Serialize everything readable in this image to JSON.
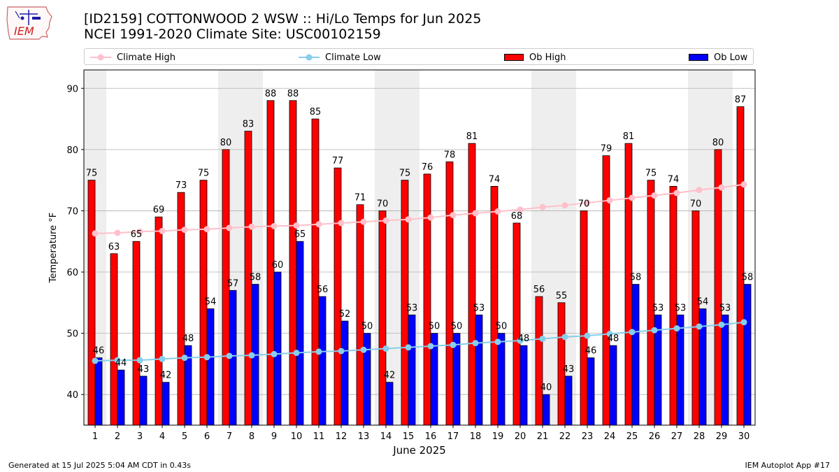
{
  "logo": {
    "text": "IEM"
  },
  "header": {
    "title_line1": "[ID2159] COTTONWOOD 2 WSW :: Hi/Lo Temps for Jun 2025",
    "title_line2": "NCEI 1991-2020 Climate Site: USC00102159"
  },
  "legend": {
    "climate_high": "Climate High",
    "climate_low": "Climate Low",
    "ob_high": "Ob High",
    "ob_low": "Ob Low"
  },
  "footer": {
    "left": "Generated at 15 Jul 2025 5:04 AM CDT in 0.43s",
    "right": "IEM Autoplot App #17"
  },
  "colors": {
    "ob_high": "#ff0000",
    "ob_low": "#0000ff",
    "climate_high": "#ffc0cb",
    "climate_low": "#87ceeb",
    "weekend_shade": "#eeeeee",
    "grid": "#b0b0b0"
  },
  "chart_data": {
    "type": "bar",
    "title": "[ID2159] COTTONWOOD 2 WSW :: Hi/Lo Temps for Jun 2025",
    "xlabel": "June 2025",
    "ylabel": "Temperature °F",
    "ylim": [
      35,
      93
    ],
    "yticks": [
      40,
      50,
      60,
      70,
      80,
      90
    ],
    "grid": "horizontal",
    "legend_position": "top",
    "categories": [
      "1",
      "2",
      "3",
      "4",
      "5",
      "6",
      "7",
      "8",
      "9",
      "10",
      "11",
      "12",
      "13",
      "14",
      "15",
      "16",
      "17",
      "18",
      "19",
      "20",
      "21",
      "22",
      "23",
      "24",
      "25",
      "26",
      "27",
      "28",
      "29",
      "30"
    ],
    "shaded_days": [
      1,
      7,
      8,
      14,
      15,
      21,
      22,
      28,
      29
    ],
    "series": [
      {
        "name": "Ob High",
        "kind": "bar",
        "values": [
          75,
          63,
          65,
          69,
          73,
          75,
          80,
          83,
          88,
          88,
          85,
          77,
          71,
          70,
          75,
          76,
          78,
          81,
          74,
          68,
          56,
          55,
          70,
          79,
          81,
          75,
          74,
          70,
          80,
          87
        ]
      },
      {
        "name": "Ob Low",
        "kind": "bar",
        "values": [
          46,
          44,
          43,
          42,
          48,
          54,
          57,
          58,
          60,
          65,
          56,
          52,
          50,
          42,
          53,
          50,
          50,
          53,
          50,
          48,
          40,
          43,
          46,
          48,
          58,
          53,
          53,
          54,
          53,
          58
        ]
      },
      {
        "name": "Climate High",
        "kind": "line",
        "values": [
          66.3,
          66.4,
          66.6,
          66.7,
          66.9,
          67.0,
          67.2,
          67.4,
          67.5,
          67.6,
          67.8,
          68.0,
          68.2,
          68.4,
          68.6,
          68.9,
          69.3,
          69.6,
          69.9,
          70.2,
          70.6,
          70.9,
          71.3,
          71.7,
          72.1,
          72.5,
          72.9,
          73.4,
          73.8,
          74.3
        ]
      },
      {
        "name": "Climate Low",
        "kind": "line",
        "values": [
          45.5,
          45.6,
          45.6,
          45.8,
          46.0,
          46.1,
          46.3,
          46.4,
          46.6,
          46.8,
          47.0,
          47.1,
          47.3,
          47.5,
          47.7,
          47.9,
          48.1,
          48.4,
          48.6,
          48.8,
          49.1,
          49.4,
          49.6,
          49.9,
          50.2,
          50.5,
          50.8,
          51.1,
          51.4,
          51.8
        ]
      }
    ]
  }
}
